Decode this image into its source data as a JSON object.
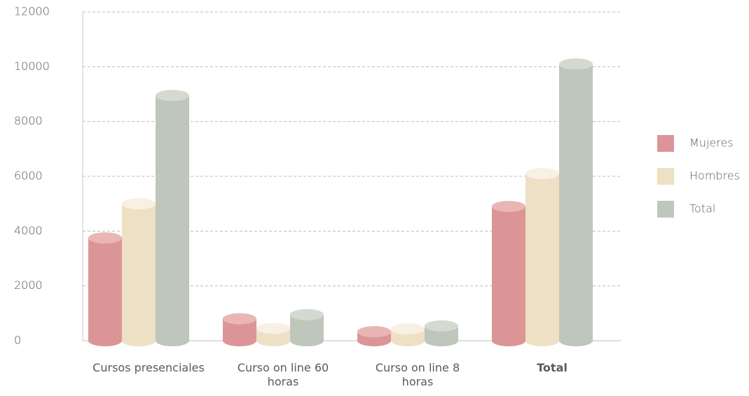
{
  "chart_data": {
    "type": "cylinder-bar",
    "categories": [
      "Cursos presenciales",
      "Curso on line 60 horas",
      "Curso on line 8 horas",
      "Total"
    ],
    "series": [
      {
        "name": "Mujeres",
        "color": "#dc9597",
        "top_color": "#e9b6b4",
        "values": [
          3750,
          800,
          330,
          4900
        ]
      },
      {
        "name": "Hombres",
        "color": "#ede0c4",
        "top_color": "#f8f1e3",
        "values": [
          5000,
          450,
          430,
          6100
        ]
      },
      {
        "name": "Total",
        "color": "#bfc6bb",
        "top_color": "#d4dad0",
        "values": [
          8950,
          950,
          540,
          10100
        ]
      }
    ],
    "ylim": [
      0,
      12000
    ],
    "yticks": [
      0,
      2000,
      4000,
      6000,
      8000,
      10000,
      12000
    ],
    "grid": true,
    "legend": "right"
  }
}
